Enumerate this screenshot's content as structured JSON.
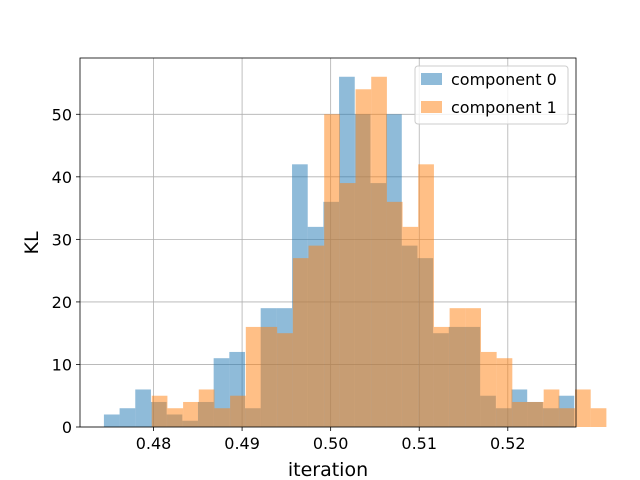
{
  "chart_data": {
    "type": "histogram",
    "title": "",
    "xlabel": "iteration",
    "ylabel": "KL",
    "xlim": [
      0.4717,
      0.5277
    ],
    "ylim": [
      0,
      59
    ],
    "xticks": [
      0.48,
      0.49,
      0.5,
      0.51,
      0.52
    ],
    "xtick_labels": [
      "0.48",
      "0.49",
      "0.50",
      "0.51",
      "0.52"
    ],
    "yticks": [
      0,
      10,
      20,
      30,
      40,
      50
    ],
    "ytick_labels": [
      "0",
      "10",
      "20",
      "30",
      "40",
      "50"
    ],
    "grid": true,
    "legend_position": "upper right",
    "alpha": 0.5,
    "series": [
      {
        "name": "component 0",
        "color": "#1f77b4",
        "bin_start": 0.4744,
        "bin_width": 0.00177,
        "counts": [
          2,
          3,
          6,
          4,
          2,
          1,
          4,
          11,
          12,
          3,
          19,
          19,
          42,
          32,
          36,
          56,
          50,
          39,
          50,
          29,
          27,
          15,
          16,
          16,
          5,
          3,
          6,
          4,
          3,
          5
        ]
      },
      {
        "name": "component 1",
        "color": "#ff7f0e",
        "bin_start": 0.4798,
        "bin_width": 0.00177,
        "counts": [
          5,
          3,
          4,
          6,
          3,
          5,
          16,
          16,
          15,
          27,
          29,
          50,
          39,
          54,
          56,
          36,
          32,
          42,
          16,
          19,
          19,
          12,
          11,
          4,
          4,
          6,
          3,
          6,
          3
        ]
      }
    ]
  }
}
